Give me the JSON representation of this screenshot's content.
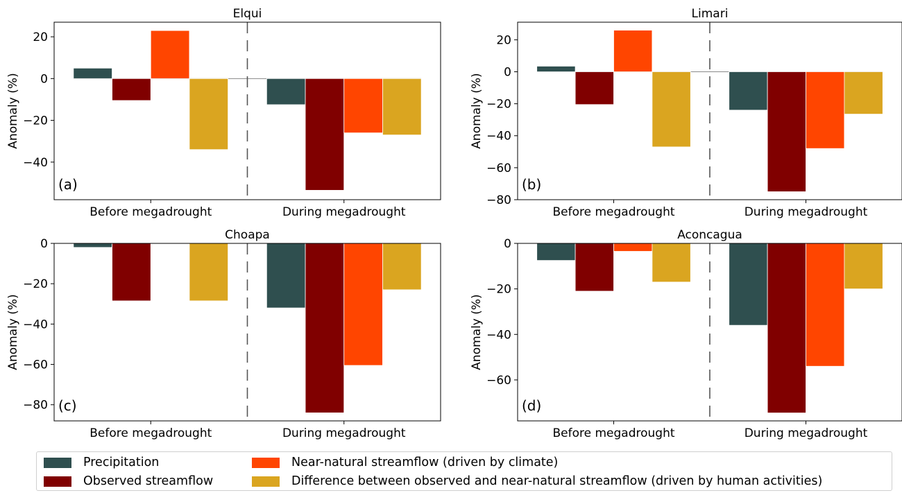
{
  "series": [
    {
      "name": "Precipitation",
      "color": "#2f4f4f"
    },
    {
      "name": "Observed streamflow",
      "color": "#800000"
    },
    {
      "name": "Near-natural streamflow (driven by climate)",
      "color": "#ff4500"
    },
    {
      "name": "Difference between observed and near-natural streamflow (driven by human activities)",
      "color": "#daa520"
    }
  ],
  "chart_data": [
    {
      "type": "bar",
      "title": "Elqui",
      "panel_label": "(a)",
      "ylabel": "Anomaly (%)",
      "categories": [
        "Before megadrought",
        "During megadrought"
      ],
      "ylim": [
        -58,
        27
      ],
      "yticks": [
        20,
        0,
        -20,
        -40
      ],
      "divider": "dashed",
      "series": [
        {
          "name": "Precipitation",
          "values": [
            5,
            -12.5
          ]
        },
        {
          "name": "Observed streamflow",
          "values": [
            -10.5,
            -53.5
          ]
        },
        {
          "name": "Near-natural streamflow (driven by climate)",
          "values": [
            23,
            -26
          ]
        },
        {
          "name": "Difference between observed and near-natural streamflow (driven by human activities)",
          "values": [
            -34,
            -27
          ]
        }
      ]
    },
    {
      "type": "bar",
      "title": "Limari",
      "panel_label": "(b)",
      "ylabel": "Anomaly (%)",
      "categories": [
        "Before megadrought",
        "During megadrought"
      ],
      "ylim": [
        -80,
        31
      ],
      "yticks": [
        20,
        0,
        -20,
        -40,
        -60,
        -80
      ],
      "divider": "dashed",
      "series": [
        {
          "name": "Precipitation",
          "values": [
            3.5,
            -24
          ]
        },
        {
          "name": "Observed streamflow",
          "values": [
            -20.5,
            -75
          ]
        },
        {
          "name": "Near-natural streamflow (driven by climate)",
          "values": [
            26,
            -48
          ]
        },
        {
          "name": "Difference between observed and near-natural streamflow (driven by human activities)",
          "values": [
            -47,
            -26.5
          ]
        }
      ]
    },
    {
      "type": "bar",
      "title": "Choapa",
      "panel_label": "(c)",
      "ylabel": "Anomaly (%)",
      "categories": [
        "Before megadrought",
        "During megadrought"
      ],
      "ylim": [
        -88,
        0
      ],
      "yticks": [
        0,
        -20,
        -40,
        -60,
        -80
      ],
      "divider": "dashed",
      "series": [
        {
          "name": "Precipitation",
          "values": [
            -2,
            -32
          ]
        },
        {
          "name": "Observed streamflow",
          "values": [
            -28.5,
            -84
          ]
        },
        {
          "name": "Near-natural streamflow (driven by climate)",
          "values": [
            0,
            -60.5
          ]
        },
        {
          "name": "Difference between observed and near-natural streamflow (driven by human activities)",
          "values": [
            -28.5,
            -23
          ]
        }
      ]
    },
    {
      "type": "bar",
      "title": "Aconcagua",
      "panel_label": "(d)",
      "ylabel": "Anomaly (%)",
      "categories": [
        "Before megadrought",
        "During megadrought"
      ],
      "ylim": [
        -78,
        0
      ],
      "yticks": [
        0,
        -20,
        -40,
        -60
      ],
      "divider": "dashed",
      "series": [
        {
          "name": "Precipitation",
          "values": [
            -7.5,
            -36
          ]
        },
        {
          "name": "Observed streamflow",
          "values": [
            -21,
            -74.5
          ]
        },
        {
          "name": "Near-natural streamflow (driven by climate)",
          "values": [
            -3.5,
            -54
          ]
        },
        {
          "name": "Difference between observed and near-natural streamflow (driven by human activities)",
          "values": [
            -17,
            -20
          ]
        }
      ]
    }
  ]
}
